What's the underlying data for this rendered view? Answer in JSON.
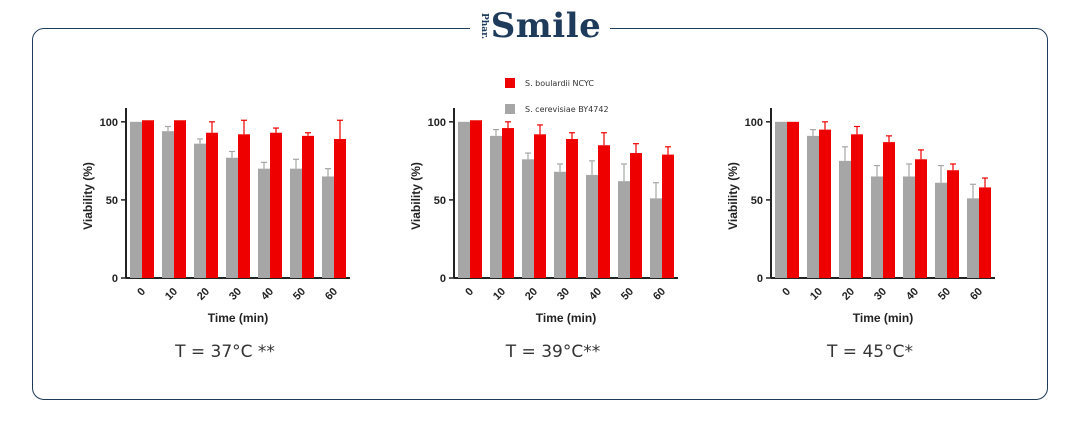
{
  "brand": {
    "small": "Phar.",
    "main": "Smile"
  },
  "colors": {
    "frame": "#1f3b5b",
    "boulardii": "#ee0000",
    "cerevisiae": "#a6a6a6",
    "axis": "#222222"
  },
  "legend": [
    {
      "label": "S. boulardii NCYC",
      "color": "#ee0000"
    },
    {
      "label": "S. cerevisiae BY4742",
      "color": "#a6a6a6"
    }
  ],
  "chart_data": [
    {
      "type": "bar",
      "title": "T = 37°C **",
      "xlabel": "Time (min)",
      "ylabel": "Viability (%)",
      "ylim": [
        0,
        105
      ],
      "yticks": [
        "0",
        "50",
        "100"
      ],
      "categories": [
        "0",
        "10",
        "20",
        "30",
        "40",
        "50",
        "60"
      ],
      "series": [
        {
          "name": "S. cerevisiae BY4742",
          "values": [
            100,
            94,
            86,
            77,
            70,
            70,
            65
          ],
          "errors": [
            0,
            3,
            3,
            4,
            4,
            6,
            5
          ]
        },
        {
          "name": "S. boulardii NCYC",
          "values": [
            101,
            101,
            93,
            92,
            93,
            91,
            89
          ],
          "errors": [
            0,
            0,
            7,
            9,
            3,
            2,
            12
          ]
        }
      ]
    },
    {
      "type": "bar",
      "title": "T = 39°C**",
      "xlabel": "Time (min)",
      "ylabel": "Viability (%)",
      "ylim": [
        0,
        105
      ],
      "yticks": [
        "0",
        "50",
        "100"
      ],
      "categories": [
        "0",
        "10",
        "20",
        "30",
        "40",
        "50",
        "60"
      ],
      "series": [
        {
          "name": "S. cerevisiae BY4742",
          "values": [
            100,
            91,
            76,
            68,
            66,
            62,
            51
          ],
          "errors": [
            0,
            4,
            4,
            5,
            9,
            11,
            10
          ]
        },
        {
          "name": "S. boulardii NCYC",
          "values": [
            101,
            96,
            92,
            89,
            85,
            80,
            79
          ],
          "errors": [
            0,
            4,
            6,
            4,
            8,
            6,
            5
          ]
        }
      ]
    },
    {
      "type": "bar",
      "title": "T = 45°C*",
      "xlabel": "Time (min)",
      "ylabel": "Viability (%)",
      "ylim": [
        0,
        105
      ],
      "yticks": [
        "0",
        "50",
        "100"
      ],
      "categories": [
        "0",
        "10",
        "20",
        "30",
        "40",
        "50",
        "60"
      ],
      "series": [
        {
          "name": "S. cerevisiae BY4742",
          "values": [
            100,
            91,
            75,
            65,
            65,
            61,
            51
          ],
          "errors": [
            0,
            4,
            9,
            7,
            8,
            11,
            9
          ]
        },
        {
          "name": "S. boulardii NCYC",
          "values": [
            100,
            95,
            92,
            87,
            76,
            69,
            58
          ],
          "errors": [
            0,
            5,
            5,
            4,
            6,
            4,
            6
          ]
        }
      ]
    }
  ]
}
